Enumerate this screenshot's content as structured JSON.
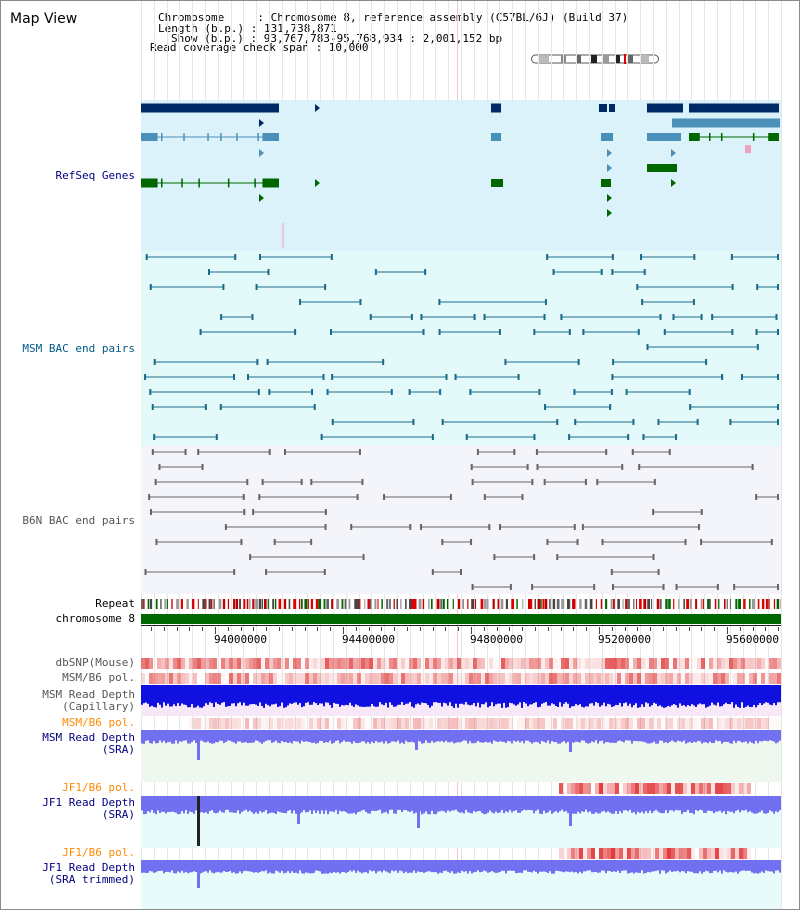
{
  "window": {
    "title": "Map View"
  },
  "info": {
    "chromosome_line": "Chromosome     : Chromosome 8, reference assembly (C57BL/6J) (Build 37)",
    "length_line": "Length (b.p.) : 131,738,871",
    "show_line": "Show (b.p.) : 93,767,783-95,768,934 : 2,001,152 bp",
    "coverage_line": "Read coverage check span : 10,000"
  },
  "tracks": {
    "refseq": "RefSeq Genes",
    "msm_bac": "MSM BAC end pairs",
    "b6n_bac": "B6N BAC end pairs",
    "repeat": "Repeat",
    "chromosome": "chromosome 8",
    "dbsnp": "dbSNP(Mouse)",
    "msm_b6_pol_1": "MSM/B6 pol.",
    "msm_read_depth_cap_1": "MSM Read Depth",
    "msm_read_depth_cap_2": "(Capillary)",
    "msm_b6_pol_2": "MSM/B6 pol.",
    "msm_read_depth_sra_1": "MSM Read Depth",
    "msm_read_depth_sra_2": "(SRA)",
    "jf1_b6_pol_1": "JF1/B6 pol.",
    "jf1_read_depth_sra_1": "JF1 Read Depth",
    "jf1_read_depth_sra_2": "(SRA)",
    "jf1_b6_pol_2": "JF1/B6 pol.",
    "jf1_read_depth_trim_1": "JF1 Read Depth",
    "jf1_read_depth_trim_2": "(SRA trimmed)"
  },
  "axis": {
    "ticks": [
      "94000000",
      "94400000",
      "94800000",
      "95200000",
      "95600000"
    ]
  },
  "colors": {
    "refseq_dark": "#002a66",
    "refseq_mid": "#4a90b8",
    "refseq_green": "#006600",
    "refseq_bg": "#dcf2fa",
    "msm_bg": "#e4fafa",
    "msm_line": "#1a6a8a",
    "b6n_bg": "#f4f4fb",
    "b6n_line": "#666666",
    "chrom": "#006600",
    "depth_blue": "#1010e0",
    "depth_lav": "#7070f0",
    "pol_red": "#e03030",
    "label_blue": "#000080",
    "label_msm": "#005a88",
    "label_b6n": "#555555",
    "label_orange": "#ff8c00"
  }
}
